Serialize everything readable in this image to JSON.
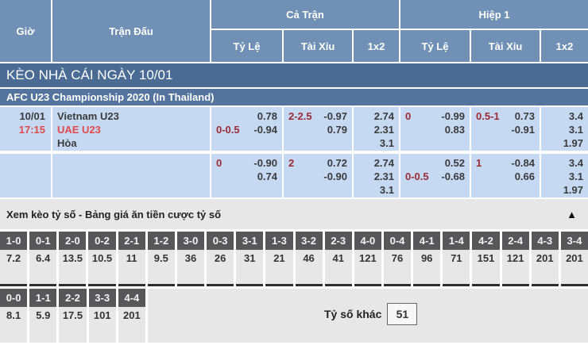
{
  "header": {
    "time": "Giờ",
    "match": "Trận Đấu",
    "full_match": "Cả Trận",
    "first_half": "Hiệp 1",
    "sub": [
      "Tỷ Lệ",
      "Tài Xỉu",
      "1x2"
    ]
  },
  "section": {
    "title": "KÈO NHÀ CÁI NGÀY 10/01"
  },
  "league": {
    "name": "AFC U23 Championship 2020 (In Thailand)"
  },
  "rows": [
    {
      "date": "10/01",
      "time": "17:15",
      "home": "Vietnam U23",
      "away": "UAE U23",
      "draw": "Hòa",
      "ft_hdp": {
        "l1l": "",
        "l1r": "0.78",
        "l2l": "0-0.5",
        "l2r": "-0.94"
      },
      "ft_ou": {
        "l1l": "2-2.5",
        "l1r": "-0.97",
        "l2l": "",
        "l2r": "0.79"
      },
      "ft_1x2": [
        "2.74",
        "2.31",
        "3.1"
      ],
      "h1_hdp": {
        "l1l": "0",
        "l1r": "-0.99",
        "l2l": "",
        "l2r": "0.83"
      },
      "h1_ou": {
        "l1l": "0.5-1",
        "l1r": "0.73",
        "l2l": "",
        "l2r": "-0.91"
      },
      "h1_1x2": [
        "3.4",
        "3.1",
        "1.97"
      ]
    },
    {
      "date": "",
      "time": "",
      "home": "",
      "away": "",
      "draw": "",
      "ft_hdp": {
        "l1l": "0",
        "l1r": "-0.90",
        "l2l": "",
        "l2r": "0.74"
      },
      "ft_ou": {
        "l1l": "2",
        "l1r": "0.72",
        "l2l": "",
        "l2r": "-0.90"
      },
      "ft_1x2": [
        "2.74",
        "2.31",
        "3.1"
      ],
      "h1_hdp": {
        "l1l": "",
        "l1r": "0.52",
        "l2l": "0-0.5",
        "l2r": "-0.68"
      },
      "h1_ou": {
        "l1l": "1",
        "l1r": "-0.84",
        "l2l": "",
        "l2r": "0.66"
      },
      "h1_1x2": [
        "3.4",
        "3.1",
        "1.97"
      ]
    }
  ],
  "score_section": {
    "title": "Xem kèo tỷ số - Bảng giá ăn tiền cược tỷ số",
    "collapse_icon": "▲",
    "other_label": "Tỷ số khác",
    "other_value": "51",
    "row1": [
      {
        "score": "1-0",
        "odds": "7.2"
      },
      {
        "score": "0-1",
        "odds": "6.4"
      },
      {
        "score": "2-0",
        "odds": "13.5"
      },
      {
        "score": "0-2",
        "odds": "10.5"
      },
      {
        "score": "2-1",
        "odds": "11"
      },
      {
        "score": "1-2",
        "odds": "9.5"
      },
      {
        "score": "3-0",
        "odds": "36"
      },
      {
        "score": "0-3",
        "odds": "26"
      },
      {
        "score": "3-1",
        "odds": "31"
      },
      {
        "score": "1-3",
        "odds": "21"
      },
      {
        "score": "3-2",
        "odds": "46"
      },
      {
        "score": "2-3",
        "odds": "41"
      },
      {
        "score": "4-0",
        "odds": "121"
      },
      {
        "score": "0-4",
        "odds": "76"
      },
      {
        "score": "4-1",
        "odds": "96"
      },
      {
        "score": "1-4",
        "odds": "71"
      },
      {
        "score": "4-2",
        "odds": "151"
      },
      {
        "score": "2-4",
        "odds": "121"
      },
      {
        "score": "4-3",
        "odds": "201"
      },
      {
        "score": "3-4",
        "odds": "201"
      }
    ],
    "row2": [
      {
        "score": "0-0",
        "odds": "8.1"
      },
      {
        "score": "1-1",
        "odds": "5.9"
      },
      {
        "score": "2-2",
        "odds": "17.5"
      },
      {
        "score": "3-3",
        "odds": "101"
      },
      {
        "score": "4-4",
        "odds": "201"
      }
    ]
  },
  "colors": {
    "header_blue": "#7090b5",
    "section_bar_blue": "#4a6b94",
    "league_bar_blue": "#54749e",
    "row_light_blue": "#c6d9f2",
    "handicap_maroon": "#9c2b33",
    "team_red": "#e04a4a",
    "chip_gray": "#57575a",
    "section_gray": "#e7e7e7"
  }
}
